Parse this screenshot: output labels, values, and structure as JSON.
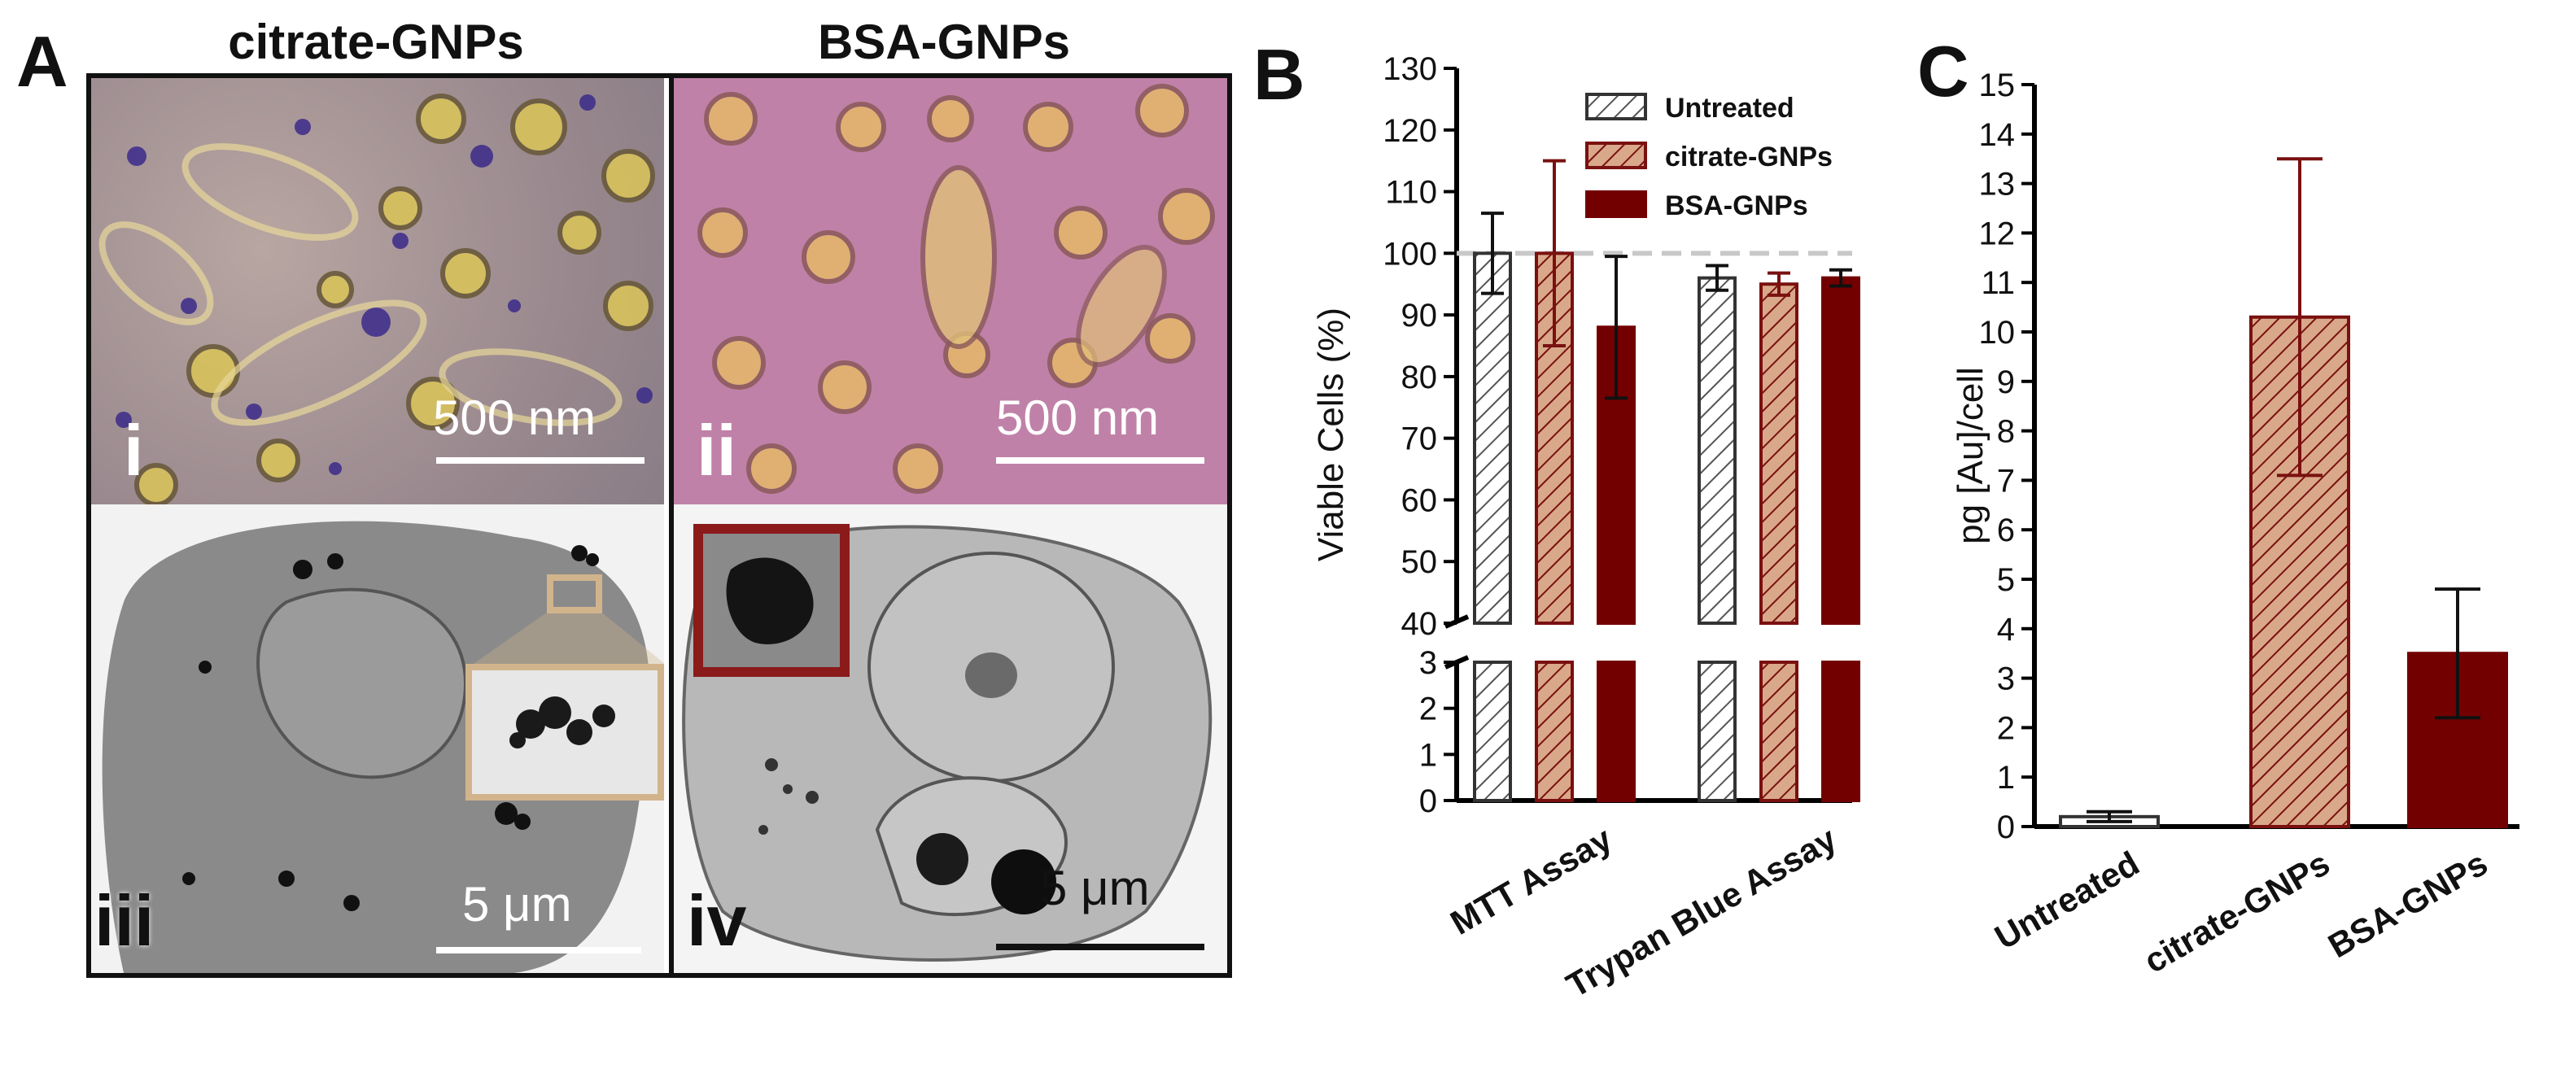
{
  "panel_a": {
    "letter": "A",
    "columns": [
      "citrate-GNPs",
      "BSA-GNPs"
    ],
    "images": [
      {
        "roman": "i",
        "scale": "500 nm",
        "kind": "phase-contrast-micrograph"
      },
      {
        "roman": "ii",
        "scale": "500 nm",
        "kind": "phase-contrast-micrograph"
      },
      {
        "roman": "iii",
        "scale": "5 μm",
        "kind": "tem-micrograph"
      },
      {
        "roman": "iv",
        "scale": "5 μm",
        "kind": "tem-micrograph"
      }
    ]
  },
  "colors": {
    "untreated_fill": "#ffffff",
    "citrate_fill": "#d9a88a",
    "citrate_edge": "#7a1010",
    "bsa_fill": "#730000",
    "inset_iii_border": "#d2b48c",
    "inset_iv_border": "#8b1a1a"
  },
  "chart_data": [
    {
      "panel": "B",
      "type": "bar",
      "ylabel": "Viable Cells (%)",
      "categories": [
        "MTT Assay",
        "Trypan Blue Assay"
      ],
      "series": [
        {
          "name": "Untreated",
          "values": [
            100,
            96
          ],
          "errors": [
            6.5,
            2
          ]
        },
        {
          "name": "citrate-GNPs",
          "values": [
            100,
            95
          ],
          "errors": [
            15,
            1.8
          ]
        },
        {
          "name": "BSA-GNPs",
          "values": [
            88,
            96
          ],
          "errors": [
            11.5,
            1.3
          ]
        }
      ],
      "broken_axis": true,
      "y_upper": {
        "range": [
          40,
          130
        ],
        "ticks": [
          40,
          50,
          60,
          70,
          80,
          90,
          100,
          110,
          120,
          130
        ]
      },
      "y_lower": {
        "range": [
          0,
          3
        ],
        "ticks": [
          0,
          1,
          2,
          3
        ]
      },
      "reference_line": 100,
      "legend": "top-right"
    },
    {
      "panel": "C",
      "type": "bar",
      "ylabel": "pg [Au]/cell",
      "categories": [
        "Untreated",
        "citrate-GNPs",
        "BSA-GNPs"
      ],
      "values": [
        0.2,
        10.3,
        3.5
      ],
      "errors": [
        0.1,
        3.2,
        1.3
      ],
      "ylim": [
        0,
        15
      ],
      "yticks": [
        0,
        1,
        2,
        3,
        4,
        5,
        6,
        7,
        8,
        9,
        10,
        11,
        12,
        13,
        14,
        15
      ]
    }
  ]
}
